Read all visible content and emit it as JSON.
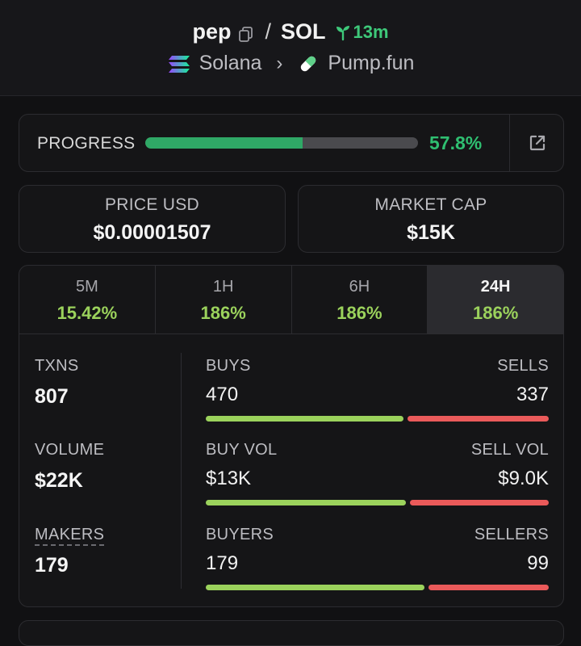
{
  "header": {
    "token": "pep",
    "slash": "/",
    "quote": "SOL",
    "age": "13m",
    "chain": "Solana",
    "dex": "Pump.fun"
  },
  "progress": {
    "label": "PROGRESS",
    "value_text": "57.8%",
    "fraction": 0.578
  },
  "price": {
    "label": "PRICE USD",
    "value": "$0.00001507"
  },
  "market_cap": {
    "label": "MARKET CAP",
    "value": "$15K"
  },
  "tabs": [
    {
      "label": "5M",
      "value": "15.42%"
    },
    {
      "label": "1H",
      "value": "186%"
    },
    {
      "label": "6H",
      "value": "186%"
    },
    {
      "label": "24H",
      "value": "186%",
      "active": true
    }
  ],
  "stats": {
    "txns": {
      "label": "TXNS",
      "value": "807"
    },
    "volume": {
      "label": "VOLUME",
      "value": "$22K"
    },
    "makers": {
      "label": "MAKERS",
      "value": "179"
    },
    "buys": {
      "label": "BUYS",
      "value": "470",
      "fraction": 0.582
    },
    "sells": {
      "label": "SELLS",
      "value": "337"
    },
    "buy_vol": {
      "label": "BUY VOL",
      "value": "$13K",
      "fraction": 0.59
    },
    "sell_vol": {
      "label": "SELL VOL",
      "value": "$9.0K"
    },
    "buyers": {
      "label": "BUYERS",
      "value": "179",
      "fraction": 0.644
    },
    "sellers": {
      "label": "SELLERS",
      "value": "99"
    }
  },
  "colors": {
    "accent_green": "#2fbf71",
    "buy_green": "#9bd25c",
    "sell_red": "#ea5a5a"
  },
  "icons": [
    "copy-icon",
    "sprout-icon",
    "solana-icon",
    "chevron-right-icon",
    "pill-icon",
    "external-link-icon"
  ]
}
